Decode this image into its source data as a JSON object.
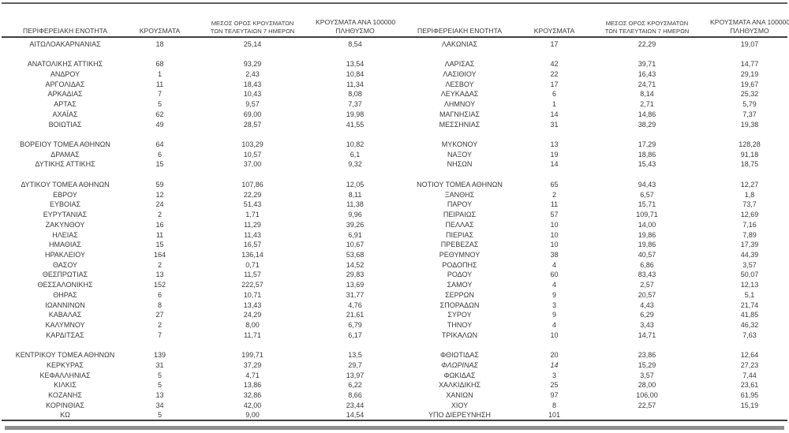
{
  "header": {
    "region": "ΠΕΡΙΦΕΡΕΙΑΚΗ ΕΝΟΤΗΤΑ",
    "cases": "ΚΡΟΥΣΜΑΤΑ",
    "avg_line1": "ΜΕΣΟΣ ΟΡΟΣ ΚΡΟΥΣΜΑΤΩΝ",
    "avg_line2": "ΤΩΝ ΤΕΛΕΥΤΑΙΩΝ 7 ΗΜΕΡΩΝ",
    "per100k_line1": "ΚΡΟΥΣΜΑΤΑ ΑΝΑ 100000",
    "per100k_line2": "ΠΛΗΘΥΣΜΟ"
  },
  "colors": {
    "text": "#3a3a3a",
    "rule_dark": "#404040",
    "rule_medium": "#5f5f5f",
    "rule_gray": "#8f8f8f",
    "background": "#ffffff"
  },
  "table": {
    "left_rows": [
      {
        "name": "ΑΙΤΩΛΟΑΚΑΡΝΑΝΙΑΣ",
        "cases": "18",
        "avg": "25,14",
        "per100k": "8,54"
      },
      "gap",
      {
        "name": "ΑΝΑΤΟΛΙΚΗΣ ΑΤΤΙΚΗΣ",
        "cases": "68",
        "avg": "93,29",
        "per100k": "13,54"
      },
      {
        "name": "ΑΝΔΡΟΥ",
        "cases": "1",
        "avg": "2,43",
        "per100k": "10,84"
      },
      {
        "name": "ΑΡΓΟΛΙΔΑΣ",
        "cases": "11",
        "avg": "18,43",
        "per100k": "11,34"
      },
      {
        "name": "ΑΡΚΑΔΙΑΣ",
        "cases": "7",
        "avg": "10,43",
        "per100k": "8,08"
      },
      {
        "name": "ΑΡΤΑΣ",
        "cases": "5",
        "avg": "9,57",
        "per100k": "7,37"
      },
      {
        "name": "ΑΧΑΪΑΣ",
        "cases": "62",
        "avg": "69,00",
        "per100k": "19,98"
      },
      {
        "name": "ΒΟΙΩΤΙΑΣ",
        "cases": "49",
        "avg": "28,57",
        "per100k": "41,55"
      },
      "gap",
      {
        "name": "ΒΟΡΕΙΟΥ ΤΟΜΕΑ ΑΘΗΝΩΝ",
        "cases": "64",
        "avg": "103,29",
        "per100k": "10,82"
      },
      {
        "name": "ΔΡΑΜΑΣ",
        "cases": "6",
        "avg": "10,57",
        "per100k": "6,1"
      },
      {
        "name": "ΔΥΤΙΚΗΣ ΑΤΤΙΚΗΣ",
        "cases": "15",
        "avg": "37,00",
        "per100k": "9,32"
      },
      "gap",
      {
        "name": "ΔΥΤΙΚΟΥ ΤΟΜΕΑ ΑΘΗΝΩΝ",
        "cases": "59",
        "avg": "107,86",
        "per100k": "12,05"
      },
      {
        "name": "ΕΒΡΟΥ",
        "cases": "12",
        "avg": "22,29",
        "per100k": "8,11"
      },
      {
        "name": "ΕΥΒΟΙΑΣ",
        "cases": "24",
        "avg": "51,43",
        "per100k": "11,38"
      },
      {
        "name": "ΕΥΡΥΤΑΝΙΑΣ",
        "cases": "2",
        "avg": "1,71",
        "per100k": "9,96"
      },
      {
        "name": "ΖΑΚΥΝΘΟΥ",
        "cases": "16",
        "avg": "11,29",
        "per100k": "39,26"
      },
      {
        "name": "ΗΛΕΙΑΣ",
        "cases": "11",
        "avg": "11,43",
        "per100k": "6,91"
      },
      {
        "name": "ΗΜΑΘΙΑΣ",
        "cases": "15",
        "avg": "16,57",
        "per100k": "10,67"
      },
      {
        "name": "ΗΡΑΚΛΕΙΟΥ",
        "cases": "164",
        "avg": "136,14",
        "per100k": "53,68"
      },
      {
        "name": "ΘΑΣΟΥ",
        "cases": "2",
        "avg": "0,71",
        "per100k": "14,52"
      },
      {
        "name": "ΘΕΣΠΡΩΤΙΑΣ",
        "cases": "13",
        "avg": "11,57",
        "per100k": "29,83"
      },
      {
        "name": "ΘΕΣΣΑΛΟΝΙΚΗΣ",
        "cases": "152",
        "avg": "222,57",
        "per100k": "13,69"
      },
      {
        "name": "ΘΗΡΑΣ",
        "cases": "6",
        "avg": "10,71",
        "per100k": "31,77"
      },
      {
        "name": "ΙΩΑΝΝΙΝΩΝ",
        "cases": "8",
        "avg": "13,43",
        "per100k": "4,76"
      },
      {
        "name": "ΚΑΒΑΛΑΣ",
        "cases": "27",
        "avg": "24,29",
        "per100k": "21,61"
      },
      {
        "name": "ΚΑΛΥΜΝΟΥ",
        "cases": "2",
        "avg": "8,00",
        "per100k": "6,79"
      },
      {
        "name": "ΚΑΡΔΙΤΣΑΣ",
        "cases": "7",
        "avg": "11,71",
        "per100k": "6,17"
      },
      "gap",
      {
        "name": "ΚΕΝΤΡΙΚΟΥ ΤΟΜΕΑ ΑΘΗΝΩΝ",
        "cases": "139",
        "avg": "199,71",
        "per100k": "13,5"
      },
      {
        "name": "ΚΕΡΚΥΡΑΣ",
        "cases": "31",
        "avg": "37,29",
        "per100k": "29,7"
      },
      {
        "name": "ΚΕΦΑΛΛΗΝΙΑΣ",
        "cases": "5",
        "avg": "4,71",
        "per100k": "13,97"
      },
      {
        "name": "ΚΙΛΚΙΣ",
        "cases": "5",
        "avg": "13,86",
        "per100k": "6,22"
      },
      {
        "name": "ΚΟΖΑΝΗΣ",
        "cases": "13",
        "avg": "32,86",
        "per100k": "8,66"
      },
      {
        "name": "ΚΟΡΙΝΘΙΑΣ",
        "cases": "34",
        "avg": "42,00",
        "per100k": "23,44"
      },
      {
        "name": "ΚΩ",
        "cases": "5",
        "avg": "9,00",
        "per100k": "14,54"
      }
    ],
    "right_rows": [
      {
        "name": "ΛΑΚΩΝΙΑΣ",
        "cases": "17",
        "avg": "22,29",
        "per100k": "19,07"
      },
      "gap",
      {
        "name": "ΛΑΡΙΣΑΣ",
        "cases": "42",
        "avg": "39,71",
        "per100k": "14,77"
      },
      {
        "name": "ΛΑΣΙΘΙΟΥ",
        "cases": "22",
        "avg": "16,43",
        "per100k": "29,19"
      },
      {
        "name": "ΛΕΣΒΟΥ",
        "cases": "17",
        "avg": "24,71",
        "per100k": "19,67"
      },
      {
        "name": "ΛΕΥΚΑΔΑΣ",
        "cases": "6",
        "avg": "8,14",
        "per100k": "25,32"
      },
      {
        "name": "ΛΗΜΝΟΥ",
        "cases": "1",
        "avg": "2,71",
        "per100k": "5,79"
      },
      {
        "name": "ΜΑΓΝΗΣΙΑΣ",
        "cases": "14",
        "avg": "14,86",
        "per100k": "7,37"
      },
      {
        "name": "ΜΕΣΣΗΝΙΑΣ",
        "cases": "31",
        "avg": "38,29",
        "per100k": "19,38"
      },
      "gap",
      {
        "name": "ΜΥΚΟΝΟΥ",
        "cases": "13",
        "avg": "17,29",
        "per100k": "128,28"
      },
      {
        "name": "ΝΑΞΟΥ",
        "cases": "19",
        "avg": "18,86",
        "per100k": "91,18"
      },
      {
        "name": "ΝΗΣΩΝ",
        "cases": "14",
        "avg": "15,43",
        "per100k": "18,75"
      },
      "gap",
      {
        "name": "ΝΟΤΙΟΥ ΤΟΜΕΑ ΑΘΗΝΩΝ",
        "cases": "65",
        "avg": "94,43",
        "per100k": "12,27"
      },
      {
        "name": "ΞΑΝΘΗΣ",
        "cases": "2",
        "avg": "6,57",
        "per100k": "1,8"
      },
      {
        "name": "ΠΑΡΟΥ",
        "cases": "11",
        "avg": "15,71",
        "per100k": "73,7"
      },
      {
        "name": "ΠΕΙΡΑΙΩΣ",
        "cases": "57",
        "avg": "109,71",
        "per100k": "12,69"
      },
      {
        "name": "ΠΕΛΛΑΣ",
        "cases": "10",
        "avg": "14,00",
        "per100k": "7,16"
      },
      {
        "name": "ΠΙΕΡΙΑΣ",
        "cases": "10",
        "avg": "19,86",
        "per100k": "7,89"
      },
      {
        "name": "ΠΡΕΒΕΖΑΣ",
        "cases": "10",
        "avg": "19,86",
        "per100k": "17,39"
      },
      {
        "name": "ΡΕΘΥΜΝΟΥ",
        "cases": "38",
        "avg": "40,57",
        "per100k": "44,39"
      },
      {
        "name": "ΡΟΔΟΠΗΣ",
        "cases": "4",
        "avg": "6,86",
        "per100k": "3,57"
      },
      {
        "name": "ΡΟΔΟΥ",
        "cases": "60",
        "avg": "83,43",
        "per100k": "50,07"
      },
      {
        "name": "ΣΑΜΟΥ",
        "cases": "4",
        "avg": "2,57",
        "per100k": "12,13"
      },
      {
        "name": "ΣΕΡΡΩΝ",
        "cases": "9",
        "avg": "20,57",
        "per100k": "5,1"
      },
      {
        "name": "ΣΠΟΡΑΔΩΝ",
        "cases": "3",
        "avg": "4,43",
        "per100k": "21,74"
      },
      {
        "name": "ΣΥΡΟΥ",
        "cases": "9",
        "avg": "6,29",
        "per100k": "41,85"
      },
      {
        "name": "ΤΗΝΟΥ",
        "cases": "4",
        "avg": "3,43",
        "per100k": "46,32"
      },
      {
        "name": "ΤΡΙΚΑΛΩΝ",
        "cases": "10",
        "avg": "14,71",
        "per100k": "7,63"
      },
      "gap",
      {
        "name": "ΦΘΙΩΤΙΔΑΣ",
        "cases": "20",
        "avg": "23,86",
        "per100k": "12,64"
      },
      {
        "name": "ΦΛΩΡΙΝΑΣ",
        "cases": "14",
        "avg": "15,29",
        "per100k": "27,23",
        "italic": true
      },
      {
        "name": "ΦΩΚΙΔΑΣ",
        "cases": "3",
        "avg": "3,57",
        "per100k": "7,44"
      },
      {
        "name": "ΧΑΛΚΙΔΙΚΗΣ",
        "cases": "25",
        "avg": "28,00",
        "per100k": "23,61"
      },
      {
        "name": "ΧΑΝΙΩΝ",
        "cases": "97",
        "avg": "106,00",
        "per100k": "61,95"
      },
      {
        "name": "ΧΙΟΥ",
        "cases": "8",
        "avg": "22,57",
        "per100k": "15,19"
      },
      {
        "name": "ΥΠΟ ΔΙΕΡΕΥΝΗΣΗ",
        "cases": "101",
        "avg": "",
        "per100k": ""
      }
    ]
  }
}
